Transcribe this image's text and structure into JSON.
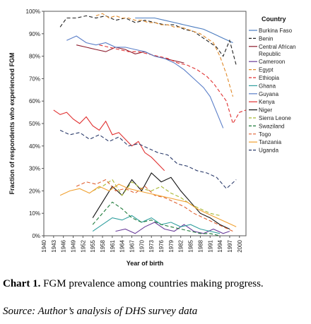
{
  "chart_data": {
    "type": "line",
    "title": "",
    "xlabel": "Year of birth",
    "ylabel": "Fraction of respondents who experienced FGM",
    "xlim": [
      1940,
      2002
    ],
    "ylim": [
      0,
      100
    ],
    "x_ticks": [
      "1940",
      "1943",
      "1946",
      "1949",
      "1952",
      "1955",
      "1958",
      "1961",
      "1964",
      "1967",
      "1970",
      "1973",
      "1976",
      "1979",
      "1982",
      "1985",
      "1988",
      "1991",
      "1994",
      "1997",
      "2000"
    ],
    "y_ticks": [
      "0%",
      "10%",
      "20%",
      "30%",
      "40%",
      "50%",
      "60%",
      "70%",
      "80%",
      "90%",
      "100%"
    ],
    "grid": false,
    "legend_title": "Country",
    "legend_position": "right",
    "series": [
      {
        "name": "Burkina Faso",
        "color": "#4a7bbf",
        "dash": "solid",
        "x": [
          1968,
          1971,
          1974,
          1977,
          1980,
          1983,
          1986,
          1989,
          1992,
          1995,
          1998
        ],
        "y": [
          97,
          97,
          97,
          96,
          95,
          94,
          93,
          92,
          90,
          88,
          86
        ]
      },
      {
        "name": "Benin",
        "color": "#222222",
        "dash": "dash",
        "x": [
          1945,
          1947,
          1950,
          1953,
          1956,
          1959,
          1962,
          1965,
          1968,
          1971,
          1974,
          1977,
          1980,
          1983,
          1986,
          1989,
          1991,
          1993,
          1995,
          1997,
          1999
        ],
        "y": [
          93,
          97,
          97,
          98,
          97,
          98,
          96,
          97,
          95,
          96,
          95,
          94,
          94,
          92,
          91,
          88,
          86,
          84,
          80,
          87,
          76
        ]
      },
      {
        "name": "Central African Republic",
        "color": "#8b1a2b",
        "dash": "solid",
        "x": [
          1950,
          1953,
          1956,
          1959,
          1962,
          1965,
          1968,
          1971,
          1974,
          1977,
          1980,
          1983
        ],
        "y": [
          85,
          84,
          83,
          82,
          84,
          83,
          81,
          82,
          80,
          79,
          78,
          77
        ]
      },
      {
        "name": "Cameroon",
        "color": "#6a3d9a",
        "dash": "solid",
        "x": [
          1962,
          1965,
          1968,
          1971,
          1974,
          1977,
          1980,
          1983,
          1986,
          1989,
          1992,
          1995,
          1997
        ],
        "y": [
          2,
          3,
          1,
          4,
          6,
          3,
          2,
          5,
          2,
          1,
          3,
          1,
          2
        ]
      },
      {
        "name": "Egypt",
        "color": "#e08a2a",
        "dash": "dash",
        "x": [
          1956,
          1958,
          1960,
          1962,
          1964,
          1966,
          1968,
          1970,
          1972,
          1974,
          1976,
          1978,
          1980,
          1982,
          1984,
          1986,
          1988,
          1990,
          1992,
          1994,
          1996,
          1998
        ],
        "y": [
          98,
          99,
          97,
          98,
          97,
          97,
          96,
          96,
          95,
          95,
          94,
          94,
          93,
          93,
          92,
          91,
          90,
          88,
          86,
          80,
          72,
          62
        ]
      },
      {
        "name": "Ethiopia",
        "color": "#e03030",
        "dash": "dash",
        "x": [
          1957,
          1960,
          1963,
          1966,
          1969,
          1972,
          1975,
          1978,
          1981,
          1984,
          1987,
          1990,
          1992,
          1994,
          1996,
          1998,
          2000,
          2002
        ],
        "y": [
          85,
          84,
          83,
          82,
          82,
          81,
          80,
          79,
          77,
          76,
          74,
          71,
          68,
          64,
          60,
          50,
          55,
          56
        ]
      },
      {
        "name": "Ghana",
        "color": "#2f9e9e",
        "dash": "solid",
        "x": [
          1955,
          1958,
          1961,
          1964,
          1967,
          1970,
          1973,
          1976,
          1979,
          1982,
          1985,
          1988,
          1991,
          1994
        ],
        "y": [
          2,
          5,
          8,
          7,
          9,
          6,
          8,
          5,
          6,
          4,
          5,
          3,
          2,
          1
        ]
      },
      {
        "name": "Guyana",
        "color": "#5a7ec8",
        "dash": "solid",
        "x": [
          1947,
          1950,
          1953,
          1956,
          1959,
          1962,
          1965,
          1968,
          1971,
          1974,
          1977,
          1980,
          1983,
          1986,
          1989,
          1991,
          1993,
          1995
        ],
        "y": [
          87,
          89,
          86,
          85,
          86,
          84,
          84,
          83,
          82,
          80,
          79,
          77,
          74,
          70,
          66,
          62,
          55,
          48
        ]
      },
      {
        "name": "Kenya",
        "color": "#e03030",
        "dash": "solid",
        "x": [
          1943,
          1945,
          1947,
          1949,
          1951,
          1953,
          1955,
          1957,
          1959,
          1961,
          1963,
          1965,
          1967,
          1969,
          1971,
          1973,
          1975,
          1977
        ],
        "y": [
          56,
          54,
          55,
          52,
          50,
          53,
          49,
          47,
          51,
          45,
          46,
          43,
          40,
          42,
          37,
          35,
          32,
          29
        ]
      },
      {
        "name": "Niger",
        "color": "#111111",
        "dash": "solid",
        "x": [
          1955,
          1958,
          1961,
          1964,
          1967,
          1970,
          1973,
          1976,
          1979,
          1982,
          1985,
          1988,
          1991,
          1994,
          1997
        ],
        "y": [
          8,
          15,
          22,
          18,
          25,
          20,
          28,
          24,
          26,
          20,
          15,
          10,
          8,
          5,
          3
        ]
      },
      {
        "name": "Sierra Leone",
        "color": "#a8b832",
        "dash": "dash",
        "x": [
          1955,
          1958,
          1961,
          1964,
          1967,
          1970,
          1973,
          1976,
          1979,
          1982,
          1985,
          1988,
          1991,
          1994
        ],
        "y": [
          20,
          22,
          25,
          18,
          24,
          21,
          20,
          22,
          19,
          17,
          14,
          12,
          10,
          9
        ]
      },
      {
        "name": "Swaziland",
        "color": "#1e7a3a",
        "dash": "dash",
        "x": [
          1955,
          1958,
          1961,
          1964,
          1967,
          1970,
          1973,
          1976,
          1979,
          1982,
          1985,
          1988,
          1991,
          1994
        ],
        "y": [
          5,
          10,
          15,
          12,
          8,
          6,
          7,
          5,
          4,
          3,
          2,
          1,
          1,
          0
        ]
      },
      {
        "name": "Togo",
        "color": "#e06030",
        "dash": "dash",
        "x": [
          1950,
          1953,
          1956,
          1959,
          1962,
          1965,
          1968,
          1971,
          1974,
          1977,
          1980,
          1983,
          1986,
          1989,
          1992,
          1995,
          1998
        ],
        "y": [
          22,
          24,
          23,
          25,
          20,
          21,
          19,
          22,
          18,
          17,
          15,
          13,
          10,
          8,
          6,
          4,
          2
        ]
      },
      {
        "name": "Tanzania",
        "color": "#f0a030",
        "dash": "solid",
        "x": [
          1945,
          1948,
          1951,
          1954,
          1957,
          1960,
          1963,
          1966,
          1969,
          1972,
          1975,
          1978,
          1981,
          1984,
          1987,
          1990,
          1993,
          1996,
          1999
        ],
        "y": [
          18,
          20,
          21,
          19,
          22,
          20,
          23,
          21,
          20,
          19,
          18,
          17,
          16,
          15,
          12,
          10,
          8,
          6,
          4
        ]
      },
      {
        "name": "Uganda",
        "color": "#2a3a6a",
        "dash": "dash",
        "x": [
          1945,
          1948,
          1951,
          1954,
          1957,
          1960,
          1963,
          1966,
          1969,
          1972,
          1975,
          1978,
          1981,
          1984,
          1987,
          1990,
          1993,
          1996,
          1999
        ],
        "y": [
          47,
          45,
          46,
          43,
          45,
          42,
          44,
          40,
          41,
          39,
          37,
          36,
          32,
          31,
          29,
          28,
          26,
          21,
          25
        ]
      }
    ]
  },
  "caption": {
    "label": "Chart 1.",
    "text": "FGM prevalence among countries making progress.",
    "source": "Source: Author’s analysis of DHS survey data"
  }
}
